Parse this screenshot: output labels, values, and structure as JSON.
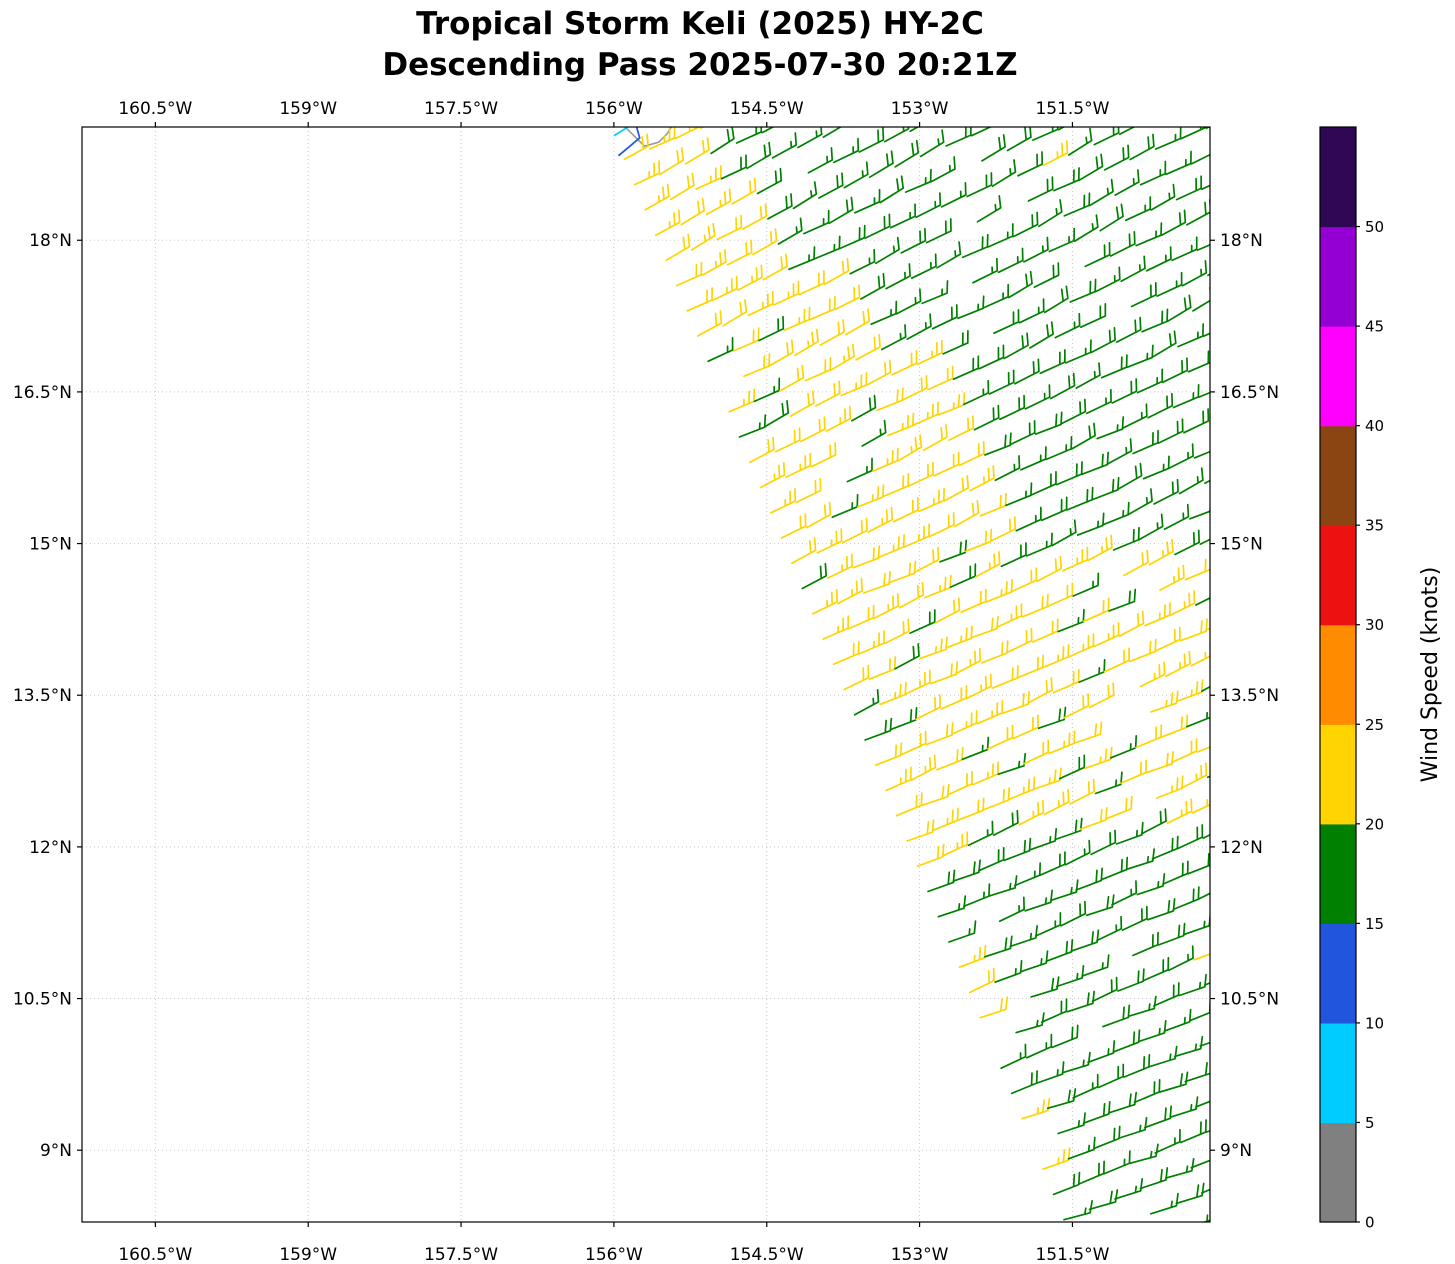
{
  "title": {
    "line1": "Tropical Storm Keli (2025) HY-2C",
    "line2": "Descending Pass 2025-07-30 20:21Z"
  },
  "chart_data": {
    "type": "scatter",
    "subtype": "wind-barb-field",
    "title": "Tropical Storm Keli (2025) HY-2C — Descending Pass 2025-07-30 20:21Z",
    "xlabel": "Longitude",
    "ylabel": "Latitude",
    "lon_range": [
      -161.22,
      -150.15
    ],
    "lat_range": [
      8.29,
      19.12
    ],
    "grid": true,
    "x_ticks": [
      {
        "value": -160.5,
        "label": "160.5°W"
      },
      {
        "value": -159.0,
        "label": "159°W"
      },
      {
        "value": -157.5,
        "label": "157.5°W"
      },
      {
        "value": -156.0,
        "label": "156°W"
      },
      {
        "value": -154.5,
        "label": "154.5°W"
      },
      {
        "value": -153.0,
        "label": "153°W"
      },
      {
        "value": -151.5,
        "label": "151.5°W"
      }
    ],
    "y_ticks": [
      {
        "value": 18.0,
        "label": "18°N"
      },
      {
        "value": 16.5,
        "label": "16.5°N"
      },
      {
        "value": 15.0,
        "label": "15°N"
      },
      {
        "value": 13.5,
        "label": "13.5°N"
      },
      {
        "value": 12.0,
        "label": "12°N"
      },
      {
        "value": 10.5,
        "label": "10.5°N"
      },
      {
        "value": 9.0,
        "label": "9°N"
      }
    ],
    "colorbar": {
      "label": "Wind Speed (knots)",
      "min": 0,
      "max": 55,
      "tick_labels": [
        "0",
        "5",
        "10",
        "15",
        "20",
        "25",
        "30",
        "35",
        "40",
        "45",
        "50"
      ],
      "colors": [
        "#808080",
        "#00ccff",
        "#2255dd",
        "#008000",
        "#ffd400",
        "#ff8c00",
        "#ee1111",
        "#8b4513",
        "#ff00ff",
        "#9400d3",
        "#2e0854"
      ]
    },
    "wind_field": {
      "description": "HY-2C scatterometer descending swath; wind barbs every ~0.27 deg; trade winds from ENE; mostly 15-20 kt (green) with a 20-25 kt (yellow) band along the inner swath edge and a yellow patch 12.2-14.9N east of 153.4W; light winds (cyan/blue) in the lee of Hawaii Island at top",
      "origin": {
        "lon": -156.0,
        "lat": 19.05
      },
      "along_unit": [
        0.3805,
        -0.9248
      ],
      "cross_unit": [
        0.9248,
        0.3805
      ],
      "step_deg": 0.27,
      "n_along": 45,
      "n_cross": 26,
      "gap_fraction": 0.05,
      "green_speeds_kt": [
        15,
        18
      ],
      "yellow_speeds_kt": [
        21,
        24
      ],
      "yellow_band_by_lat": [
        [
          17.6,
          19.2,
          0.85
        ],
        [
          16.8,
          17.6,
          1.4
        ],
        [
          15.8,
          16.8,
          1.9
        ],
        [
          14.4,
          15.8,
          2.0
        ],
        [
          13.2,
          14.4,
          2.2
        ],
        [
          12.3,
          13.2,
          1.1
        ],
        [
          11.8,
          12.3,
          0.45
        ]
      ],
      "yellow_patch": {
        "lat_min": 12.15,
        "lat_max": 14.85,
        "lon_min": -153.35
      },
      "mix_fraction": 0.15,
      "stray_yellow_fraction": 0.015,
      "direction": {
        "base_deg_at_19N": 62,
        "deg_per_deg_south": 0.8,
        "jitter_deg": 5
      }
    },
    "special_barbs": [
      {
        "lon": -155.99,
        "lat": 19.04,
        "speed_kt": 7,
        "dir_deg": 58
      },
      {
        "lon": -155.95,
        "lat": 18.84,
        "speed_kt": 12,
        "dir_deg": 50
      }
    ],
    "coastline": [
      [
        -155.9,
        19.13
      ],
      [
        -155.8,
        19.03
      ],
      [
        -155.7,
        18.93
      ],
      [
        -155.56,
        18.97
      ],
      [
        -155.48,
        19.05
      ],
      [
        -155.43,
        19.13
      ]
    ]
  }
}
